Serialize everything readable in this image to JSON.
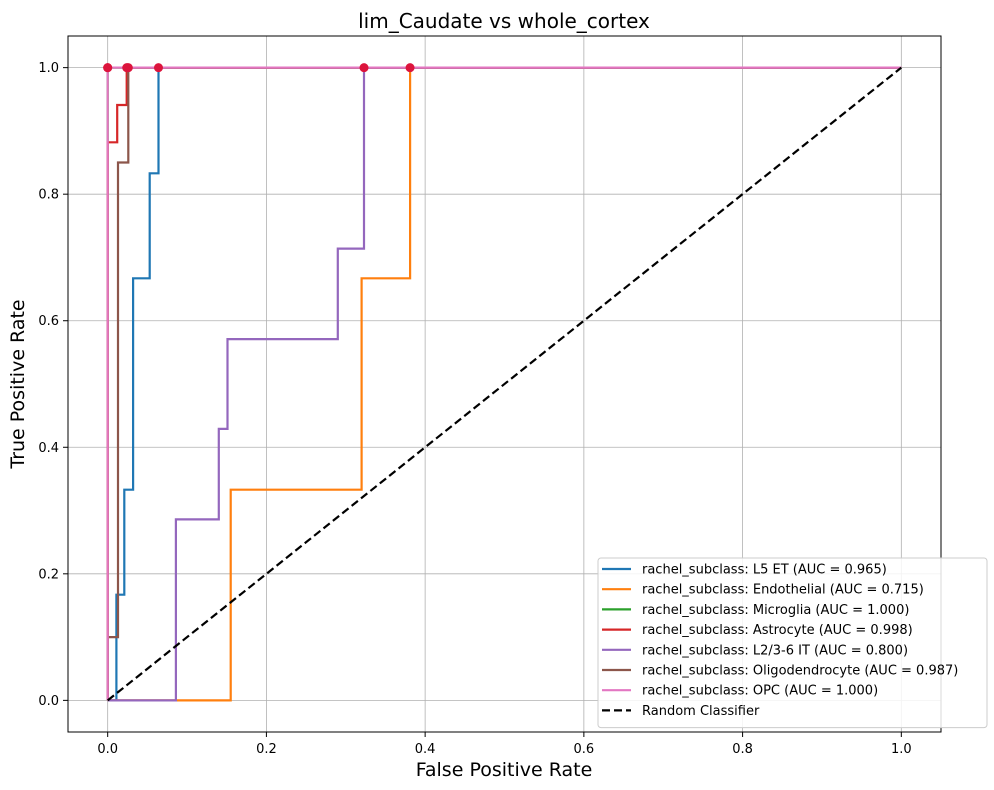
{
  "chart_data": {
    "type": "line",
    "title": "lim_Caudate vs whole_cortex",
    "xlabel": "False Positive Rate",
    "ylabel": "True Positive Rate",
    "xlim": [
      -0.05,
      1.05
    ],
    "ylim": [
      -0.05,
      1.05
    ],
    "xticks": [
      "0.0",
      "0.2",
      "0.4",
      "0.6",
      "0.8",
      "1.0"
    ],
    "yticks": [
      "0.0",
      "0.2",
      "0.4",
      "0.6",
      "0.8",
      "1.0"
    ],
    "grid": true,
    "legend_position": "lower-right",
    "series": [
      {
        "name": "rachel_subclass: L5 ET (AUC = 0.965)",
        "color": "#1f77b4",
        "style": "solid",
        "x": [
          0,
          0.011,
          0.011,
          0.021,
          0.021,
          0.032,
          0.032,
          0.053,
          0.053,
          0.064,
          0.064,
          1.0
        ],
        "y": [
          0,
          0,
          0.167,
          0.167,
          0.333,
          0.333,
          0.667,
          0.667,
          0.833,
          0.833,
          1.0,
          1.0
        ],
        "marker": [
          0.064,
          1.0
        ]
      },
      {
        "name": "rachel_subclass: Endothelial (AUC = 0.715)",
        "color": "#ff7f0e",
        "style": "solid",
        "x": [
          0,
          0.155,
          0.155,
          0.32,
          0.32,
          0.381,
          0.381,
          1.0
        ],
        "y": [
          0,
          0,
          0.333,
          0.333,
          0.667,
          0.667,
          1.0,
          1.0
        ],
        "marker": [
          0.381,
          1.0
        ]
      },
      {
        "name": "rachel_subclass: Microglia (AUC = 1.000)",
        "color": "#2ca02c",
        "style": "solid",
        "x": [
          0,
          0,
          1.0
        ],
        "y": [
          0,
          1.0,
          1.0
        ],
        "marker": [
          0,
          1.0
        ]
      },
      {
        "name": "rachel_subclass: Astrocyte (AUC = 0.998)",
        "color": "#d62728",
        "style": "solid",
        "x": [
          0,
          0,
          0.012,
          0.012,
          0.024,
          0.024,
          1.0
        ],
        "y": [
          0,
          0.882,
          0.882,
          0.941,
          0.941,
          1.0,
          1.0
        ],
        "marker": [
          0.024,
          1.0
        ]
      },
      {
        "name": "rachel_subclass: L2/3-6 IT (AUC = 0.800)",
        "color": "#9467bd",
        "style": "solid",
        "x": [
          0,
          0.086,
          0.086,
          0.14,
          0.14,
          0.151,
          0.151,
          0.29,
          0.29,
          0.323,
          0.323,
          1.0
        ],
        "y": [
          0,
          0,
          0.286,
          0.286,
          0.429,
          0.429,
          0.571,
          0.571,
          0.714,
          0.714,
          1.0,
          1.0
        ],
        "marker": [
          0.323,
          1.0
        ]
      },
      {
        "name": "rachel_subclass: Oligodendrocyte (AUC = 0.987)",
        "color": "#8c564b",
        "style": "solid",
        "x": [
          0,
          0,
          0.013,
          0.013,
          0.026,
          0.026,
          1.0
        ],
        "y": [
          0,
          0.1,
          0.1,
          0.85,
          0.85,
          1.0,
          1.0
        ],
        "marker": [
          0.026,
          1.0
        ]
      },
      {
        "name": "rachel_subclass: OPC (AUC = 1.000)",
        "color": "#e377c2",
        "style": "solid",
        "x": [
          0,
          0,
          1.0
        ],
        "y": [
          0,
          1.0,
          1.0
        ],
        "marker": [
          0,
          1.0
        ]
      },
      {
        "name": "Random Classifier",
        "color": "#000000",
        "style": "dashed",
        "x": [
          0,
          1.0
        ],
        "y": [
          0,
          1.0
        ]
      }
    ],
    "marker_color": "#dc143c"
  }
}
